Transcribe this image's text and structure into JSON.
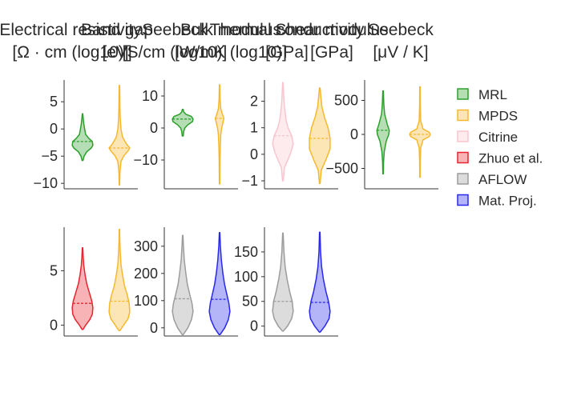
{
  "chart_data": {
    "type": "violin",
    "grid": false,
    "legend_placement": "right",
    "legend": [
      {
        "name": "MRL",
        "color": "#2ca02c"
      },
      {
        "name": "MPDS",
        "color": "#f5b82e"
      },
      {
        "name": "Citrine",
        "color": "#f9c5cf"
      },
      {
        "name": "Zhuo et al.",
        "color": "#e8242e"
      },
      {
        "name": "AFLOW",
        "color": "#9c9c9c"
      },
      {
        "name": "Mat. Proj.",
        "color": "#2828ee"
      }
    ],
    "panels": [
      {
        "title_lines": [
          "Electrical resistivity",
          "[Ω · cm (log10)]"
        ],
        "ylim": [
          -11,
          9
        ],
        "yticks": [
          -10,
          -5,
          0,
          5
        ],
        "ytick_labels": [
          "−10",
          "−5",
          "0",
          "5"
        ],
        "violins": [
          {
            "source": "MRL",
            "color": "#2ca02c",
            "min": -5.8,
            "max": 2.8,
            "mean": -2.3,
            "profile": [
              [
                -5.8,
                0.05
              ],
              [
                -5,
                0.15
              ],
              [
                -4.2,
                0.4
              ],
              [
                -3.5,
                0.85
              ],
              [
                -3,
                1
              ],
              [
                -2.3,
                0.95
              ],
              [
                -1.7,
                0.6
              ],
              [
                -1,
                0.3
              ],
              [
                0,
                0.2
              ],
              [
                1,
                0.12
              ],
              [
                2,
                0.06
              ],
              [
                2.8,
                0.02
              ]
            ]
          },
          {
            "source": "MPDS",
            "color": "#f5b82e",
            "min": -10.3,
            "max": 8.0,
            "mean": -3.5,
            "profile": [
              [
                -10.3,
                0.02
              ],
              [
                -8,
                0.05
              ],
              [
                -6,
                0.15
              ],
              [
                -5,
                0.4
              ],
              [
                -4,
                0.85
              ],
              [
                -3.5,
                1
              ],
              [
                -2.8,
                0.7
              ],
              [
                -1.5,
                0.3
              ],
              [
                0,
                0.15
              ],
              [
                2,
                0.08
              ],
              [
                4,
                0.05
              ],
              [
                6,
                0.04
              ],
              [
                8,
                0.02
              ]
            ]
          }
        ]
      },
      {
        "title_lines": [
          "Band gap",
          "[eV]"
        ],
        "ylim": [
          -19,
          15
        ],
        "yticks": [
          -10,
          0,
          10
        ],
        "ytick_labels": [
          "−10",
          "0",
          "10"
        ],
        "violins": [
          {
            "source": "MRL",
            "color": "#2ca02c",
            "min": -2.5,
            "max": 5.8,
            "mean": 2.8,
            "profile": [
              [
                -2.5,
                0.05
              ],
              [
                -1,
                0.1
              ],
              [
                0,
                0.2
              ],
              [
                1,
                0.5
              ],
              [
                2,
                0.95
              ],
              [
                2.8,
                1
              ],
              [
                3.6,
                0.85
              ],
              [
                4.3,
                0.3
              ],
              [
                5,
                0.1
              ],
              [
                5.8,
                0.04
              ]
            ]
          },
          {
            "source": "MPDS",
            "color": "#f5b82e",
            "min": -17.5,
            "max": 13.5,
            "mean": 3.0,
            "profile": [
              [
                -17.5,
                0.02
              ],
              [
                -10,
                0.04
              ],
              [
                -5,
                0.08
              ],
              [
                -2,
                0.12
              ],
              [
                0,
                0.2
              ],
              [
                2,
                0.35
              ],
              [
                3,
                0.42
              ],
              [
                4,
                0.3
              ],
              [
                6,
                0.12
              ],
              [
                9,
                0.05
              ],
              [
                13.5,
                0.02
              ]
            ]
          }
        ]
      },
      {
        "title_lines": [
          "Seebeck",
          "[S/cm (log10)]"
        ],
        "ylim": [
          -1.3,
          2.8
        ],
        "yticks": [
          -1,
          0,
          1,
          2
        ],
        "ytick_labels": [
          "−1",
          "0",
          "1",
          "2"
        ],
        "violins": [
          {
            "source": "Citrine",
            "color": "#f9c5cf",
            "min": -1.0,
            "max": 2.7,
            "mean": 0.7,
            "profile": [
              [
                -1,
                0.03
              ],
              [
                -0.5,
                0.15
              ],
              [
                -0.2,
                0.5
              ],
              [
                0.1,
                0.8
              ],
              [
                0.4,
                1
              ],
              [
                0.7,
                0.85
              ],
              [
                1.0,
                0.5
              ],
              [
                1.3,
                0.3
              ],
              [
                1.8,
                0.15
              ],
              [
                2.3,
                0.07
              ],
              [
                2.7,
                0.02
              ]
            ]
          },
          {
            "source": "MPDS",
            "color": "#f5b82e",
            "min": -1.1,
            "max": 2.5,
            "mean": 0.6,
            "profile": [
              [
                -1.1,
                0.03
              ],
              [
                -0.6,
                0.15
              ],
              [
                -0.2,
                0.6
              ],
              [
                0.2,
                1
              ],
              [
                0.6,
                1
              ],
              [
                1.0,
                0.8
              ],
              [
                1.4,
                0.45
              ],
              [
                1.8,
                0.2
              ],
              [
                2.2,
                0.1
              ],
              [
                2.5,
                0.03
              ]
            ]
          }
        ]
      },
      {
        "title_lines": [
          "Bulk modulus",
          "[W/mK (log10)]"
        ],
        "ylim": [
          -800,
          800
        ],
        "yticks": [
          -500,
          0,
          500
        ],
        "ytick_labels": [
          "−500",
          "0",
          "500"
        ],
        "violins": [
          {
            "source": "MRL",
            "color": "#2ca02c",
            "min": -580,
            "max": 640,
            "mean": 60,
            "profile": [
              [
                -580,
                0.02
              ],
              [
                -400,
                0.05
              ],
              [
                -250,
                0.12
              ],
              [
                -100,
                0.3
              ],
              [
                0,
                0.55
              ],
              [
                60,
                0.6
              ],
              [
                150,
                0.4
              ],
              [
                300,
                0.15
              ],
              [
                450,
                0.07
              ],
              [
                640,
                0.02
              ]
            ]
          },
          {
            "source": "MPDS",
            "color": "#f5b82e",
            "min": -630,
            "max": 700,
            "mean": 0,
            "profile": [
              [
                -630,
                0.02
              ],
              [
                -400,
                0.03
              ],
              [
                -200,
                0.07
              ],
              [
                -80,
                0.3
              ],
              [
                -30,
                0.9
              ],
              [
                0,
                1
              ],
              [
                30,
                0.9
              ],
              [
                80,
                0.3
              ],
              [
                200,
                0.07
              ],
              [
                450,
                0.03
              ],
              [
                700,
                0.02
              ]
            ]
          }
        ]
      },
      {
        "title_lines": [
          "Thermal conductivity",
          "[GPa]"
        ],
        "ylim": [
          -1,
          9
        ],
        "yticks": [
          0,
          5
        ],
        "ytick_labels": [
          "0",
          "5"
        ],
        "violins": [
          {
            "source": "Zhuo et al.",
            "color": "#e8242e",
            "min": -0.4,
            "max": 7.1,
            "mean": 2.0,
            "profile": [
              [
                -0.4,
                0.05
              ],
              [
                0,
                0.3
              ],
              [
                0.5,
                0.7
              ],
              [
                1.0,
                0.95
              ],
              [
                1.6,
                1
              ],
              [
                2.2,
                0.9
              ],
              [
                3,
                0.65
              ],
              [
                3.8,
                0.4
              ],
              [
                4.6,
                0.25
              ],
              [
                5.5,
                0.12
              ],
              [
                6.3,
                0.06
              ],
              [
                7.1,
                0.02
              ]
            ]
          },
          {
            "source": "MPDS",
            "color": "#f5b82e",
            "min": -0.5,
            "max": 8.8,
            "mean": 2.2,
            "profile": [
              [
                -0.5,
                0.05
              ],
              [
                0,
                0.4
              ],
              [
                0.6,
                0.85
              ],
              [
                1.2,
                1
              ],
              [
                2,
                0.95
              ],
              [
                2.8,
                0.75
              ],
              [
                3.6,
                0.5
              ],
              [
                4.6,
                0.3
              ],
              [
                5.6,
                0.15
              ],
              [
                6.8,
                0.08
              ],
              [
                7.8,
                0.04
              ],
              [
                8.8,
                0.02
              ]
            ]
          }
        ]
      },
      {
        "title_lines": [
          "Shear modulus",
          "[GPa]"
        ],
        "ylim": [
          -30,
          370
        ],
        "yticks": [
          0,
          100,
          200,
          300
        ],
        "ytick_labels": [
          "0",
          "100",
          "200",
          "300"
        ],
        "violins": [
          {
            "source": "AFLOW",
            "color": "#9c9c9c",
            "min": -25,
            "max": 340,
            "mean": 107,
            "profile": [
              [
                -25,
                0.05
              ],
              [
                0,
                0.5
              ],
              [
                30,
                0.85
              ],
              [
                60,
                1
              ],
              [
                90,
                0.9
              ],
              [
                120,
                0.7
              ],
              [
                160,
                0.45
              ],
              [
                200,
                0.3
              ],
              [
                250,
                0.15
              ],
              [
                300,
                0.07
              ],
              [
                340,
                0.02
              ]
            ]
          },
          {
            "source": "Mat. Proj.",
            "color": "#2828ee",
            "min": -25,
            "max": 350,
            "mean": 105,
            "profile": [
              [
                -25,
                0.05
              ],
              [
                0,
                0.5
              ],
              [
                30,
                0.85
              ],
              [
                60,
                1
              ],
              [
                90,
                0.9
              ],
              [
                120,
                0.72
              ],
              [
                160,
                0.48
              ],
              [
                200,
                0.32
              ],
              [
                250,
                0.17
              ],
              [
                300,
                0.08
              ],
              [
                350,
                0.02
              ]
            ]
          }
        ]
      },
      {
        "title_lines": [
          "Seebeck",
          "[μV / K]"
        ],
        "ylim": [
          -20,
          200
        ],
        "yticks": [
          0,
          50,
          100,
          150
        ],
        "ytick_labels": [
          "0",
          "50",
          "100",
          "150"
        ],
        "violins": [
          {
            "source": "AFLOW",
            "color": "#9c9c9c",
            "min": -10,
            "max": 188,
            "mean": 50,
            "profile": [
              [
                -10,
                0.05
              ],
              [
                0,
                0.45
              ],
              [
                15,
                0.85
              ],
              [
                30,
                1
              ],
              [
                50,
                0.9
              ],
              [
                70,
                0.65
              ],
              [
                95,
                0.4
              ],
              [
                120,
                0.22
              ],
              [
                150,
                0.1
              ],
              [
                188,
                0.02
              ]
            ]
          },
          {
            "source": "Mat. Proj.",
            "color": "#2828ee",
            "min": -12,
            "max": 190,
            "mean": 48,
            "profile": [
              [
                -12,
                0.05
              ],
              [
                0,
                0.5
              ],
              [
                15,
                0.9
              ],
              [
                30,
                1
              ],
              [
                50,
                0.85
              ],
              [
                70,
                0.6
              ],
              [
                95,
                0.35
              ],
              [
                120,
                0.18
              ],
              [
                150,
                0.08
              ],
              [
                190,
                0.02
              ]
            ]
          }
        ]
      }
    ]
  }
}
